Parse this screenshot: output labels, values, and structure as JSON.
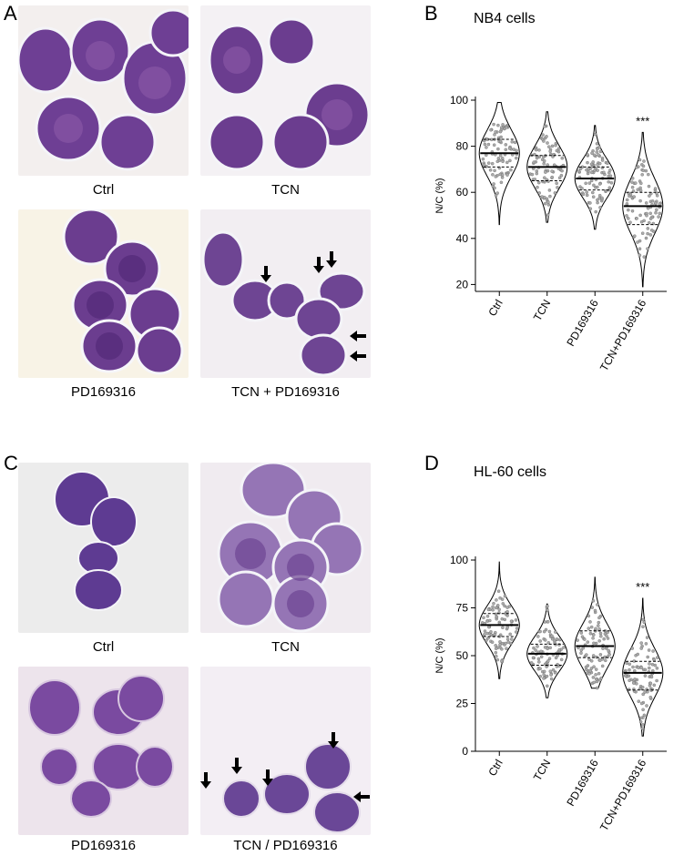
{
  "panels": {
    "A": {
      "letter": "A",
      "captions": [
        "Ctrl",
        "TCN",
        "PD169316",
        "TCN + PD169316"
      ]
    },
    "B": {
      "letter": "B",
      "title": "NB4 cells"
    },
    "C": {
      "letter": "C",
      "captions": [
        "Ctrl",
        "TCN",
        "PD169316",
        "TCN / PD169316"
      ]
    },
    "D": {
      "letter": "D",
      "title": "HL-60 cells"
    }
  },
  "colors": {
    "cell_nucleus": "#5a2d7f",
    "cell_cytoplasm": "#8a63b5",
    "cell_border": "#eef0f6",
    "background_light": "#f6f2ec",
    "violin_stroke": "#000000",
    "point_fill": "#999999"
  },
  "chart_data": [
    {
      "type": "violin",
      "categories": [
        "Ctrl",
        "TCN",
        "PD169316",
        "TCN+PD169316"
      ],
      "ylabel": "N/C (%)",
      "ylim": [
        17,
        100
      ],
      "yticks": [
        20,
        40,
        60,
        80,
        100
      ],
      "medians": [
        77,
        71,
        66,
        54
      ],
      "quartiles": [
        [
          71,
          83
        ],
        [
          65,
          76
        ],
        [
          61,
          71
        ],
        [
          46,
          60
        ]
      ],
      "ranges": [
        [
          46,
          99
        ],
        [
          47,
          95
        ],
        [
          44,
          89
        ],
        [
          19,
          86
        ]
      ],
      "annotations": [
        {
          "category": "TCN+PD169316",
          "text": "***"
        }
      ]
    },
    {
      "type": "violin",
      "categories": [
        "Ctrl",
        "TCN",
        "PD169316",
        "TCN+PD169316"
      ],
      "ylabel": "N/C (%)",
      "ylim": [
        0,
        100
      ],
      "yticks": [
        0,
        25,
        50,
        75,
        100
      ],
      "medians": [
        66,
        51,
        55,
        41
      ],
      "quartiles": [
        [
          60,
          72
        ],
        [
          45,
          56
        ],
        [
          49,
          63
        ],
        [
          32,
          47
        ]
      ],
      "ranges": [
        [
          38,
          99
        ],
        [
          28,
          77
        ],
        [
          33,
          91
        ],
        [
          8,
          80
        ]
      ],
      "annotations": [
        {
          "category": "TCN+PD169316",
          "text": "***"
        }
      ]
    }
  ]
}
